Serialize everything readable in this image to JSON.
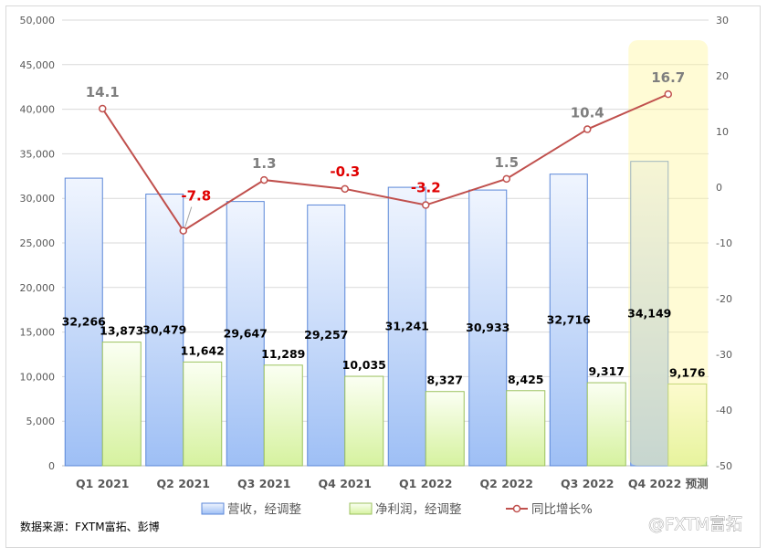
{
  "chart_data": {
    "type": "bar",
    "categories": [
      "Q1 2021",
      "Q2 2021",
      "Q3 2021",
      "Q4 2021",
      "Q1 2022",
      "Q2 2022",
      "Q3 2022",
      "Q4 2022 预测"
    ],
    "series": [
      {
        "name": "营收，经调整",
        "type": "bar",
        "axis": "left",
        "values": [
          32266,
          30479,
          29647,
          29257,
          31241,
          30933,
          32716,
          34149
        ]
      },
      {
        "name": "净利润，经调整",
        "type": "bar",
        "axis": "left",
        "values": [
          13873,
          11642,
          11289,
          10035,
          8327,
          8425,
          9317,
          9176
        ]
      },
      {
        "name": "同比增长%",
        "type": "line",
        "axis": "right",
        "values": [
          14.1,
          -7.8,
          1.3,
          -0.3,
          -3.2,
          1.5,
          10.4,
          16.7
        ]
      }
    ],
    "ylim": [
      0,
      50000
    ],
    "y_ticks": [
      0,
      5000,
      10000,
      15000,
      20000,
      25000,
      30000,
      35000,
      40000,
      45000,
      50000
    ],
    "y2lim": [
      -50,
      30
    ],
    "y2_ticks": [
      -50,
      -40,
      -30,
      -20,
      -10,
      0,
      10,
      20,
      30
    ],
    "grid": true,
    "legend": "bottom",
    "highlight_category_index": 7
  },
  "colors": {
    "revenue_bar": "#9ebff5",
    "revenue_border": "#5b87d8",
    "profit_bar": "#d6f29f",
    "profit_border": "#9cc25f",
    "growth_line": "#c0504d",
    "positive_label": "#7f7f7f",
    "negative_label": "#e00000",
    "highlight": "#fff59a"
  },
  "source": "数据来源：FXTM富拓、彭博",
  "watermark": "@FXTM富拓"
}
